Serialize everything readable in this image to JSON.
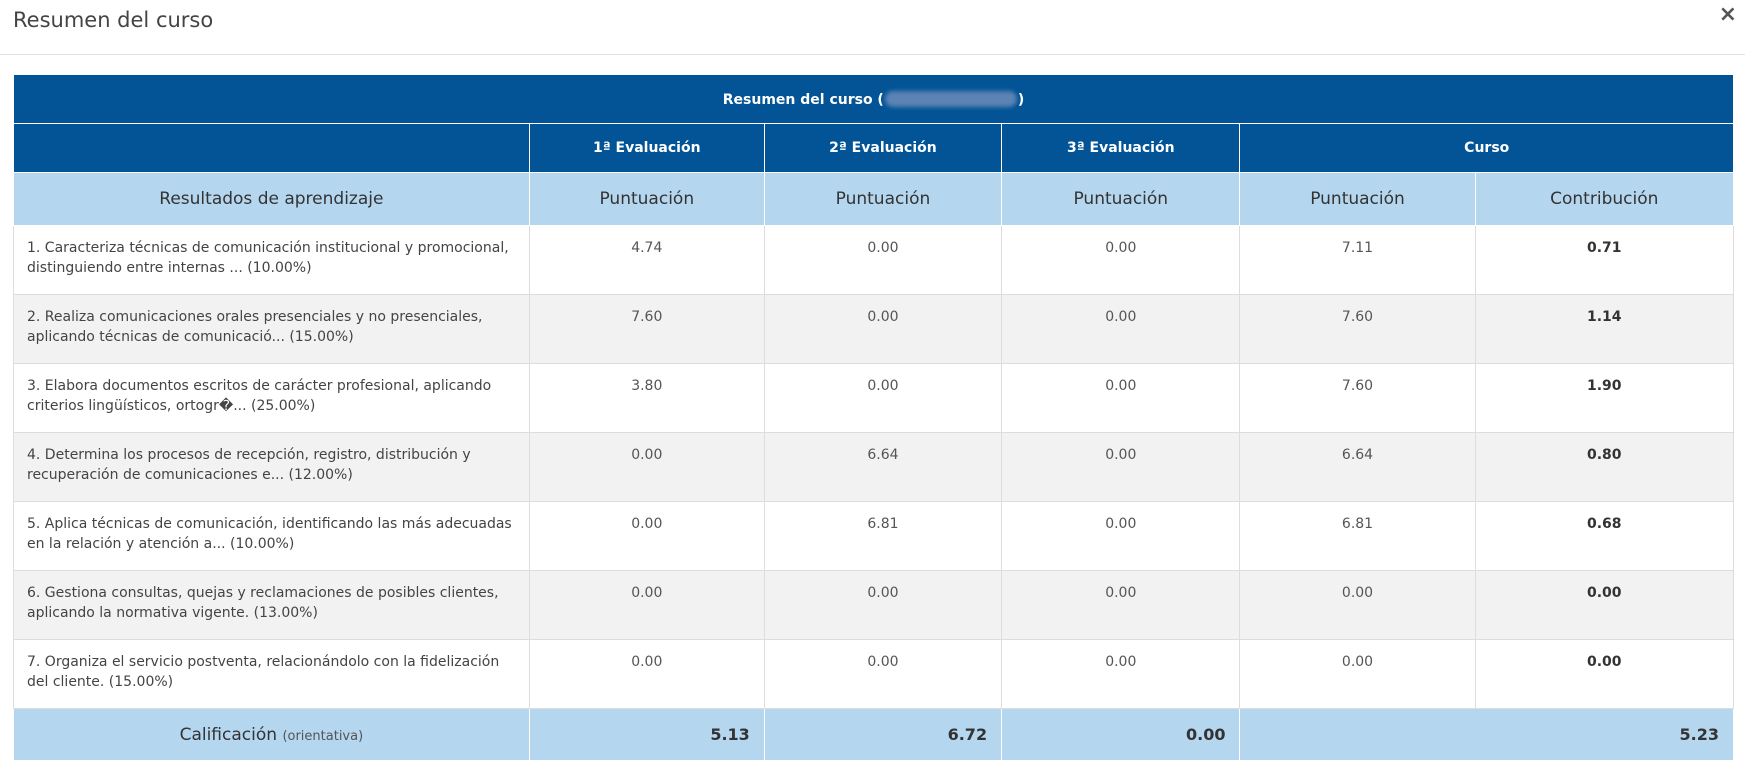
{
  "modal": {
    "title": "Resumen del curso",
    "close_label": "×"
  },
  "table": {
    "banner_prefix": "Resumen del curso (",
    "banner_suffix": ")",
    "groups": [
      "1ª Evaluación",
      "2ª Evaluación",
      "3ª Evaluación",
      "Curso"
    ],
    "subheaders": [
      "Resultados de aprendizaje",
      "Puntuación",
      "Puntuación",
      "Puntuación",
      "Puntuación",
      "Contribución"
    ],
    "rows": [
      {
        "outcome": "1. Caracteriza técnicas de comunicación institucional y promocional, distinguiendo entre internas ... (10.00%)",
        "e1": "4.74",
        "e2": "0.00",
        "e3": "0.00",
        "course": "7.11",
        "contrib": "0.71"
      },
      {
        "outcome": "2. Realiza comunicaciones orales presenciales y no presenciales, aplicando técnicas de comunicació... (15.00%)",
        "e1": "7.60",
        "e2": "0.00",
        "e3": "0.00",
        "course": "7.60",
        "contrib": "1.14"
      },
      {
        "outcome": "3. Elabora documentos escritos de carácter profesional, aplicando criterios lingüísticos, ortogr�... (25.00%)",
        "e1": "3.80",
        "e2": "0.00",
        "e3": "0.00",
        "course": "7.60",
        "contrib": "1.90"
      },
      {
        "outcome": "4. Determina los procesos de recepción, registro, distribución y recuperación de comunicaciones e... (12.00%)",
        "e1": "0.00",
        "e2": "6.64",
        "e3": "0.00",
        "course": "6.64",
        "contrib": "0.80"
      },
      {
        "outcome": "5. Aplica técnicas de comunicación, identificando las más adecuadas en la relación y atención a... (10.00%)",
        "e1": "0.00",
        "e2": "6.81",
        "e3": "0.00",
        "course": "6.81",
        "contrib": "0.68"
      },
      {
        "outcome": "6. Gestiona consultas, quejas y reclamaciones de posibles clientes, aplicando la normativa vigente. (13.00%)",
        "e1": "0.00",
        "e2": "0.00",
        "e3": "0.00",
        "course": "0.00",
        "contrib": "0.00"
      },
      {
        "outcome": "7. Organiza el servicio postventa, relacionándolo con la fidelización del cliente. (15.00%)",
        "e1": "0.00",
        "e2": "0.00",
        "e3": "0.00",
        "course": "0.00",
        "contrib": "0.00"
      }
    ],
    "total": {
      "label": "Calificación",
      "note": "(orientativa)",
      "e1": "5.13",
      "e2": "6.72",
      "e3": "0.00",
      "course": "5.23"
    }
  }
}
